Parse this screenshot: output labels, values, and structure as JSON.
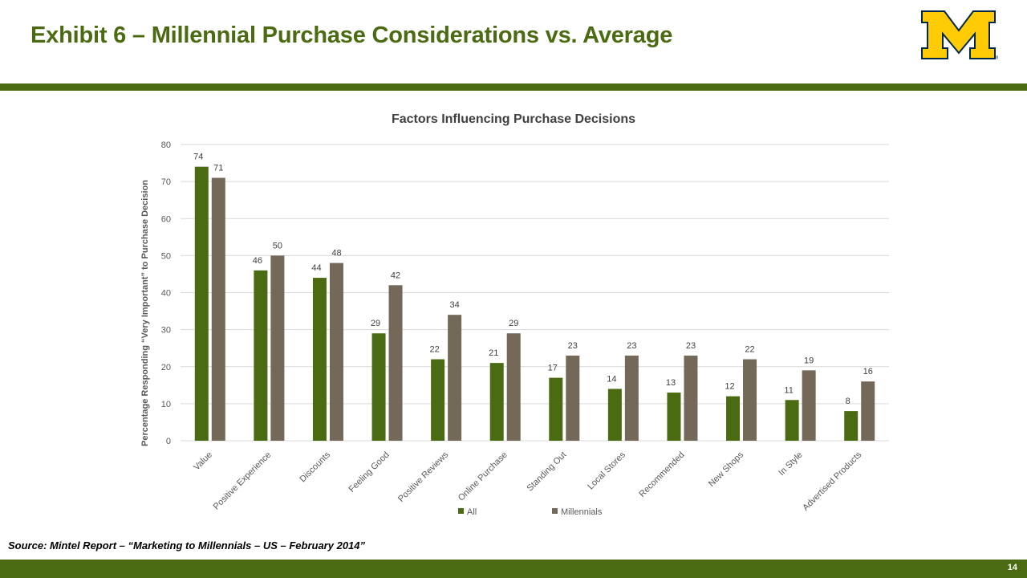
{
  "slide": {
    "title": "Exhibit 6 – Millennial Purchase Considerations vs. Average",
    "source": "Source: Mintel Report – “Marketing to Millennials – US – February 2014”",
    "page_number": "14",
    "brand_color": "#4a6b12",
    "logo": {
      "icon": "block-m-logo",
      "color": "#ffcb05",
      "outline": "#00274c"
    }
  },
  "chart_data": {
    "type": "bar",
    "title": "Factors Influencing Purchase Decisions",
    "xlabel": "",
    "ylabel": "Percentage Responding “Very Important” to Purchase Decision",
    "ylim": [
      0,
      80
    ],
    "yticks": [
      0,
      10,
      20,
      30,
      40,
      50,
      60,
      70,
      80
    ],
    "grid": true,
    "legend_position": "bottom",
    "categories": [
      "Value",
      "Positive Experience",
      "Discounts",
      "Feeling Good",
      "Positive Reviews",
      "Online Purchase",
      "Standing Out",
      "Local Stores",
      "Recommended",
      "New Shops",
      "In Style",
      "Advertised Products"
    ],
    "series": [
      {
        "name": "All",
        "color": "#4a6b12",
        "values": [
          74,
          46,
          44,
          29,
          22,
          21,
          17,
          14,
          13,
          12,
          11,
          8
        ]
      },
      {
        "name": "Millennials",
        "color": "#746858",
        "values": [
          71,
          50,
          48,
          42,
          34,
          29,
          23,
          23,
          23,
          22,
          19,
          16
        ]
      }
    ]
  }
}
